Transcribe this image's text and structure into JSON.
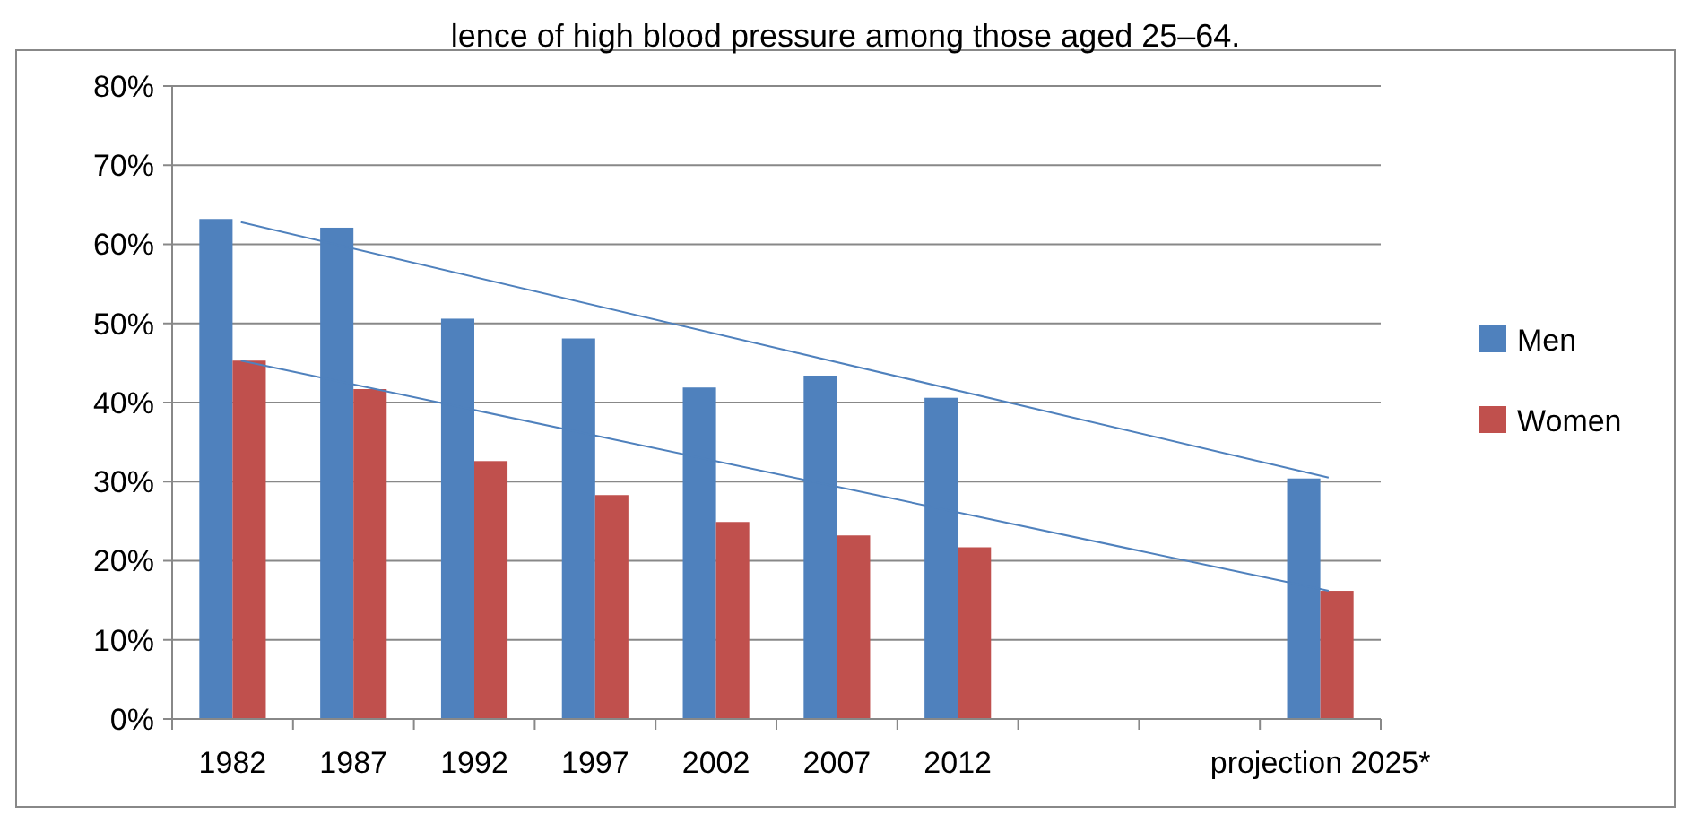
{
  "chart_data": {
    "type": "bar",
    "title": "lence of high blood pressure among those aged 25–64.",
    "categories": [
      "1982",
      "1987",
      "1992",
      "1997",
      "2002",
      "2007",
      "2012",
      null,
      null,
      "projection 2025*"
    ],
    "series": [
      {
        "name": "Men",
        "color": "#4f81bd",
        "values": [
          63.2,
          62.1,
          50.6,
          48.1,
          41.9,
          43.4,
          40.6,
          null,
          null,
          30.4
        ]
      },
      {
        "name": "Women",
        "color": "#c0504d",
        "values": [
          45.3,
          41.7,
          32.6,
          28.3,
          24.9,
          23.2,
          21.7,
          null,
          null,
          16.2
        ]
      },
      {
        "type": "line",
        "color": "#4f81bd",
        "values": [
          62.8,
          null,
          null,
          null,
          null,
          null,
          null,
          null,
          null,
          30.5
        ]
      },
      {
        "type": "line",
        "color": "#4f81bd",
        "values": [
          45.3,
          null,
          null,
          null,
          null,
          null,
          null,
          null,
          null,
          16.2
        ]
      }
    ],
    "ylim": [
      0,
      80
    ],
    "yticks": [
      {
        "value": 0,
        "label": "0%"
      },
      {
        "value": 10,
        "label": "10%"
      },
      {
        "value": 20,
        "label": "20%"
      },
      {
        "value": 30,
        "label": "30%"
      },
      {
        "value": 40,
        "label": "40%"
      },
      {
        "value": 50,
        "label": "50%"
      },
      {
        "value": 60,
        "label": "60%"
      },
      {
        "value": 70,
        "label": "70%"
      },
      {
        "value": 80,
        "label": "80%"
      }
    ],
    "grid": "y",
    "legend": "right",
    "marker": "none",
    "line_style": "solid"
  }
}
